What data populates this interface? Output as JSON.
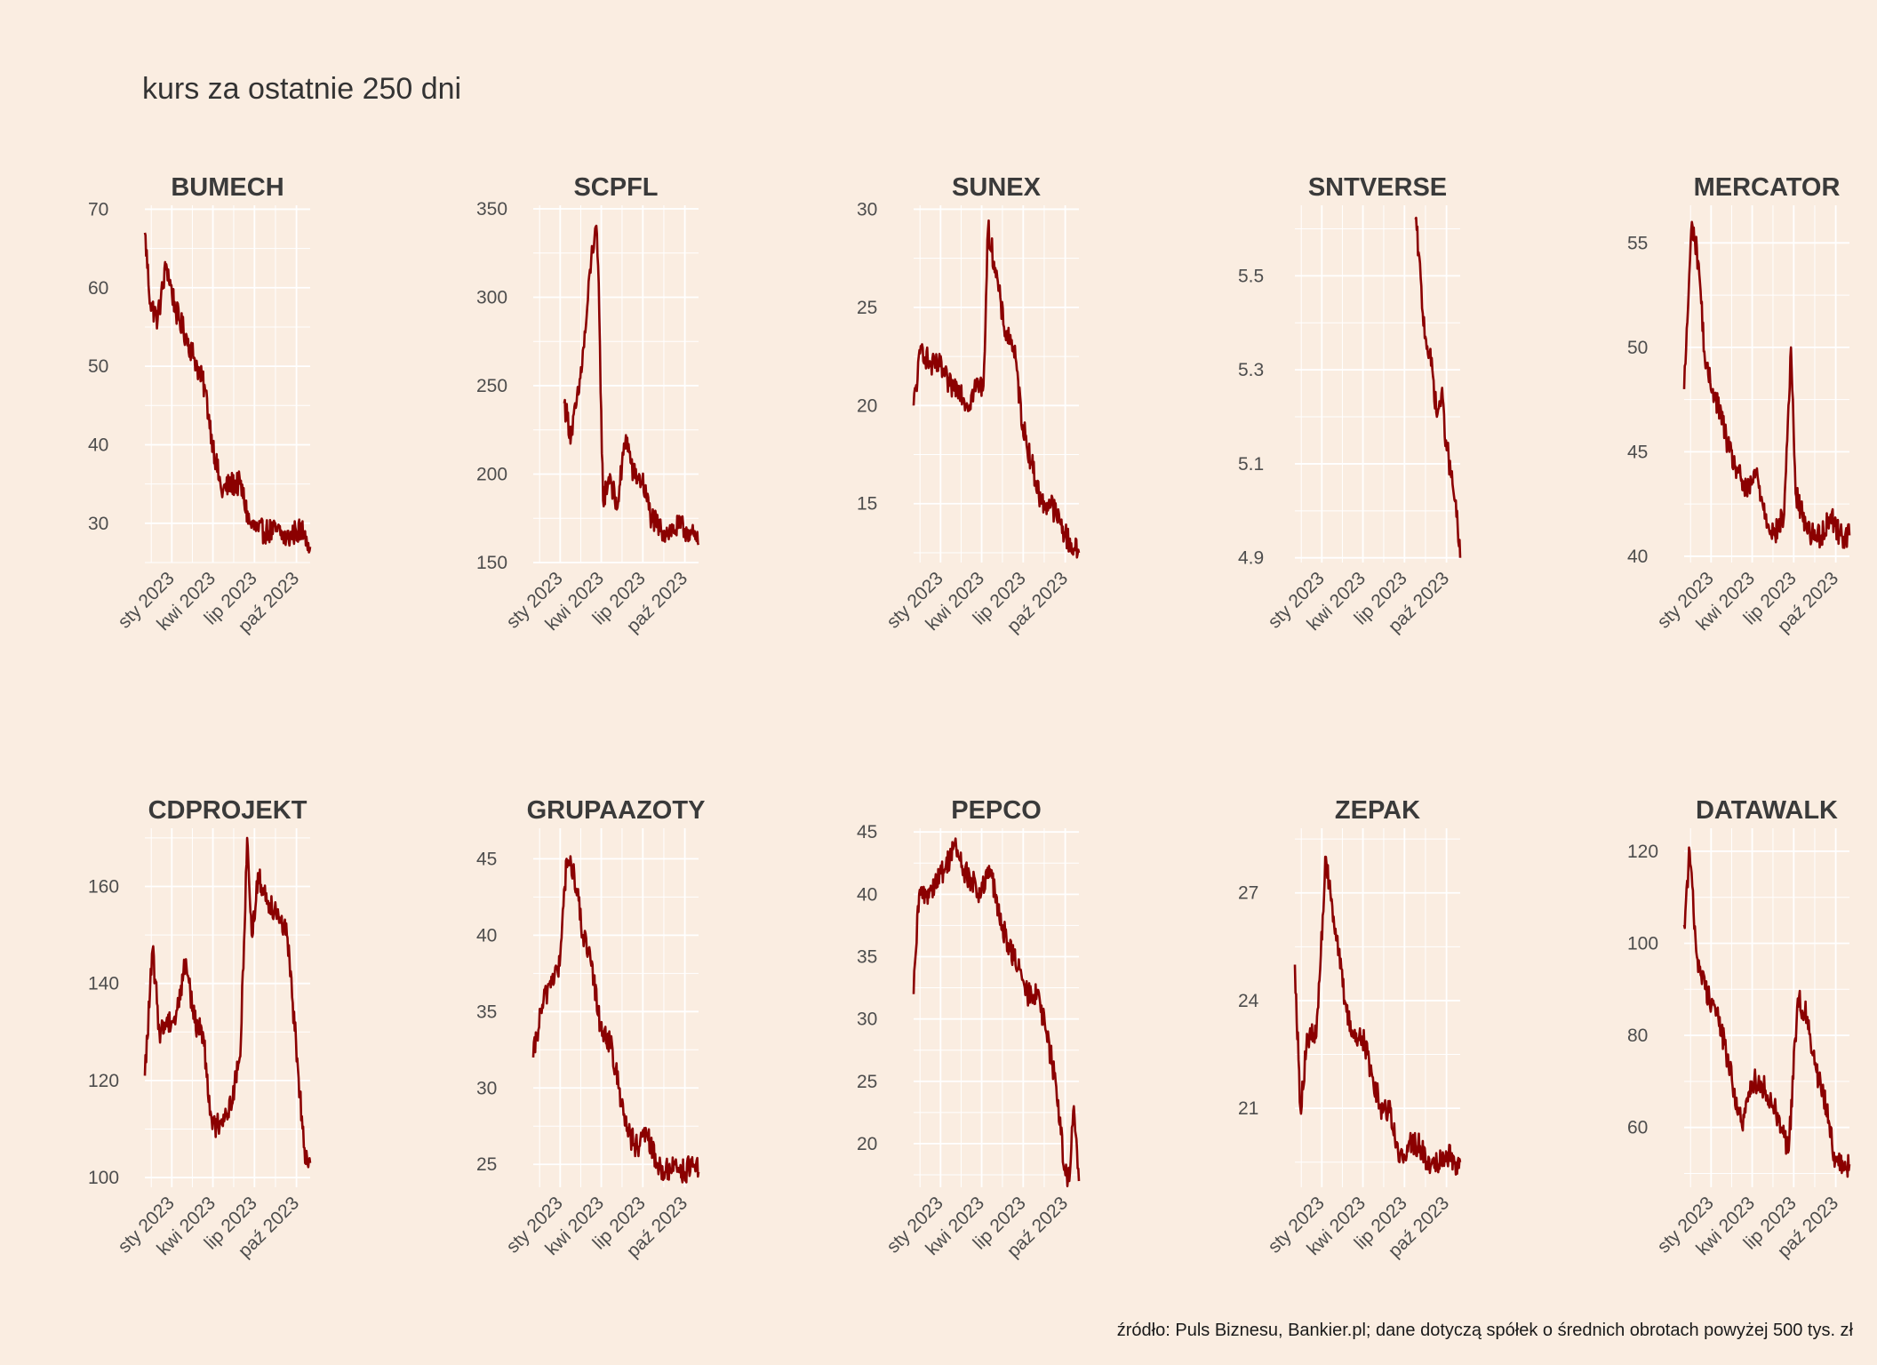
{
  "title": "kurs za ostatnie 250 dni",
  "caption": "źródło: Puls Biznesu, Bankier.pl; dane dotyczą spółek o średnich obrotach powyżej 500 tys. zł",
  "colors": {
    "background": "#FAEDE1",
    "line": "#8B0000",
    "grid": "#FFFFFF",
    "text": "#4D4D4D"
  },
  "chart_data": [
    {
      "type": "line",
      "title": "BUMECH",
      "x_ticks": [
        "sty 2023",
        "kwi 2023",
        "lip 2023",
        "paź 2023"
      ],
      "x_range": [
        "2022-11-03",
        "2023-10-31"
      ],
      "y_ticks": [
        30,
        40,
        50,
        60,
        70
      ],
      "ylim": [
        25,
        70.5
      ],
      "x": [
        "2022-11-03",
        "2022-11-15",
        "2022-12-01",
        "2022-12-20",
        "2023-01-10",
        "2023-01-31",
        "2023-02-20",
        "2023-03-15",
        "2023-04-01",
        "2023-04-20",
        "2023-05-10",
        "2023-05-31",
        "2023-06-20",
        "2023-07-10",
        "2023-07-31",
        "2023-08-20",
        "2023-09-10",
        "2023-09-30",
        "2023-10-20",
        "2023-10-31"
      ],
      "values": [
        67,
        58,
        56,
        63,
        57,
        54,
        51,
        47,
        40,
        34,
        35,
        35,
        30,
        29,
        29,
        29,
        28,
        29,
        29,
        27
      ]
    },
    {
      "type": "line",
      "title": "SCPFL",
      "x_ticks": [
        "sty 2023",
        "kwi 2023",
        "lip 2023",
        "paź 2023"
      ],
      "x_range": [
        "2022-11-03",
        "2023-10-31"
      ],
      "y_ticks": [
        150,
        200,
        250,
        300,
        350
      ],
      "ylim": [
        150,
        352
      ],
      "x": [
        "2023-01-10",
        "2023-01-25",
        "2023-02-10",
        "2023-02-25",
        "2023-03-10",
        "2023-03-20",
        "2023-03-25",
        "2023-04-05",
        "2023-04-20",
        "2023-05-05",
        "2023-05-25",
        "2023-06-10",
        "2023-06-30",
        "2023-07-20",
        "2023-08-10",
        "2023-08-31",
        "2023-09-20",
        "2023-10-10",
        "2023-10-31"
      ],
      "values": [
        240,
        222,
        245,
        280,
        322,
        340,
        318,
        185,
        200,
        180,
        222,
        200,
        196,
        175,
        168,
        168,
        170,
        168,
        160
      ]
    },
    {
      "type": "line",
      "title": "SUNEX",
      "x_ticks": [
        "sty 2023",
        "kwi 2023",
        "lip 2023",
        "paź 2023"
      ],
      "x_range": [
        "2022-11-03",
        "2023-10-31"
      ],
      "y_ticks": [
        15,
        20,
        25,
        30
      ],
      "ylim": [
        12,
        30.2
      ],
      "x": [
        "2022-11-03",
        "2022-11-20",
        "2022-12-10",
        "2022-12-31",
        "2023-01-20",
        "2023-02-10",
        "2023-03-01",
        "2023-03-20",
        "2023-04-05",
        "2023-04-15",
        "2023-05-01",
        "2023-05-20",
        "2023-06-10",
        "2023-06-30",
        "2023-07-20",
        "2023-08-10",
        "2023-08-31",
        "2023-09-20",
        "2023-10-10",
        "2023-10-31"
      ],
      "values": [
        20,
        23,
        22,
        22,
        21,
        21,
        20,
        21,
        21,
        29,
        27,
        24,
        23,
        19,
        17,
        15,
        15,
        14,
        13,
        12.5
      ]
    },
    {
      "type": "line",
      "title": "SNTVERSE",
      "x_ticks": [
        "sty 2023",
        "kwi 2023",
        "lip 2023",
        "paź 2023"
      ],
      "x_range": [
        "2022-11-03",
        "2023-10-31"
      ],
      "y_ticks": [
        4.9,
        5.1,
        5.3,
        5.5
      ],
      "ylim": [
        4.89,
        5.65
      ],
      "x": [
        "2023-07-25",
        "2023-08-01",
        "2023-08-10",
        "2023-08-20",
        "2023-08-31",
        "2023-09-10",
        "2023-09-20",
        "2023-09-30",
        "2023-10-10",
        "2023-10-20",
        "2023-10-31"
      ],
      "values": [
        5.62,
        5.55,
        5.42,
        5.35,
        5.3,
        5.2,
        5.25,
        5.15,
        5.08,
        5.02,
        4.9
      ]
    },
    {
      "type": "line",
      "title": "MERCATOR",
      "x_ticks": [
        "sty 2023",
        "kwi 2023",
        "lip 2023",
        "paź 2023"
      ],
      "x_range": [
        "2022-11-03",
        "2023-10-31"
      ],
      "y_ticks": [
        40,
        45,
        50,
        55
      ],
      "ylim": [
        39.7,
        56.8
      ],
      "x": [
        "2022-11-03",
        "2022-11-20",
        "2022-12-05",
        "2022-12-20",
        "2023-01-05",
        "2023-01-20",
        "2023-02-10",
        "2023-03-01",
        "2023-03-20",
        "2023-04-10",
        "2023-04-30",
        "2023-05-20",
        "2023-06-10",
        "2023-06-25",
        "2023-07-05",
        "2023-07-20",
        "2023-08-10",
        "2023-08-31",
        "2023-09-20",
        "2023-10-10",
        "2023-10-31"
      ],
      "values": [
        48,
        56,
        54,
        49,
        48,
        47,
        45,
        44,
        43,
        44,
        42,
        41,
        42,
        50,
        43,
        42,
        41,
        41,
        42,
        41,
        41
      ]
    },
    {
      "type": "line",
      "title": "CDPROJEKT",
      "x_ticks": [
        "sty 2023",
        "kwi 2023",
        "lip 2023",
        "paź 2023"
      ],
      "x_range": [
        "2022-11-03",
        "2023-10-31"
      ],
      "y_ticks": [
        100,
        120,
        140,
        160
      ],
      "ylim": [
        98,
        172
      ],
      "x": [
        "2022-11-03",
        "2022-11-20",
        "2022-12-05",
        "2022-12-20",
        "2023-01-10",
        "2023-02-01",
        "2023-02-20",
        "2023-03-10",
        "2023-03-31",
        "2023-04-20",
        "2023-05-10",
        "2023-05-31",
        "2023-06-15",
        "2023-06-25",
        "2023-07-10",
        "2023-07-31",
        "2023-08-20",
        "2023-09-10",
        "2023-09-30",
        "2023-10-20",
        "2023-10-31"
      ],
      "values": [
        121,
        147,
        130,
        132,
        133,
        145,
        132,
        130,
        110,
        112,
        115,
        125,
        170,
        150,
        162,
        157,
        155,
        150,
        128,
        103,
        103
      ]
    },
    {
      "type": "line",
      "title": "GRUPAAZOTY",
      "x_ticks": [
        "sty 2023",
        "kwi 2023",
        "lip 2023",
        "paź 2023"
      ],
      "x_range": [
        "2022-11-03",
        "2023-10-31"
      ],
      "y_ticks": [
        25,
        30,
        35,
        40,
        45
      ],
      "ylim": [
        23.5,
        47
      ],
      "x": [
        "2022-11-03",
        "2022-11-20",
        "2022-12-10",
        "2022-12-31",
        "2023-01-15",
        "2023-02-01",
        "2023-02-20",
        "2023-03-10",
        "2023-03-31",
        "2023-04-20",
        "2023-05-10",
        "2023-05-31",
        "2023-06-20",
        "2023-07-10",
        "2023-07-31",
        "2023-08-20",
        "2023-09-10",
        "2023-09-30",
        "2023-10-20",
        "2023-10-31"
      ],
      "values": [
        32,
        35,
        37,
        38,
        45,
        44,
        40,
        38,
        34,
        33,
        30,
        27,
        26,
        27,
        25,
        24.5,
        25,
        24.5,
        25,
        24.5
      ]
    },
    {
      "type": "line",
      "title": "PEPCO",
      "x_ticks": [
        "sty 2023",
        "kwi 2023",
        "lip 2023",
        "paź 2023"
      ],
      "x_range": [
        "2022-11-03",
        "2023-10-31"
      ],
      "y_ticks": [
        20,
        25,
        30,
        35,
        40,
        45
      ],
      "ylim": [
        16.5,
        45.3
      ],
      "x": [
        "2022-11-03",
        "2022-11-15",
        "2022-12-01",
        "2022-12-20",
        "2023-01-10",
        "2023-01-31",
        "2023-02-20",
        "2023-03-10",
        "2023-03-31",
        "2023-04-20",
        "2023-05-10",
        "2023-05-31",
        "2023-06-20",
        "2023-07-10",
        "2023-07-31",
        "2023-08-20",
        "2023-09-10",
        "2023-09-30",
        "2023-10-10",
        "2023-10-20",
        "2023-10-31"
      ],
      "values": [
        32,
        40,
        40,
        41,
        42,
        44,
        42,
        41,
        40,
        42,
        38,
        36,
        34,
        32,
        32,
        29,
        25,
        18,
        17,
        23,
        17
      ]
    },
    {
      "type": "line",
      "title": "ZEPAK",
      "x_ticks": [
        "sty 2023",
        "kwi 2023",
        "lip 2023",
        "paź 2023"
      ],
      "x_range": [
        "2022-11-03",
        "2023-10-31"
      ],
      "y_ticks": [
        21,
        24,
        27
      ],
      "ylim": [
        18.8,
        28.8
      ],
      "x": [
        "2022-11-03",
        "2022-11-15",
        "2022-12-01",
        "2022-12-20",
        "2023-01-10",
        "2023-01-31",
        "2023-02-20",
        "2023-03-10",
        "2023-03-31",
        "2023-04-20",
        "2023-05-10",
        "2023-05-31",
        "2023-06-20",
        "2023-07-10",
        "2023-07-31",
        "2023-08-20",
        "2023-09-10",
        "2023-09-30",
        "2023-10-20",
        "2023-10-31"
      ],
      "values": [
        25,
        21,
        23,
        23,
        28,
        26,
        24,
        23,
        23,
        22,
        21,
        21,
        19.5,
        20,
        20,
        19.5,
        19.5,
        19.8,
        19.5,
        19.5
      ]
    },
    {
      "type": "line",
      "title": "DATAWALK",
      "x_ticks": [
        "sty 2023",
        "kwi 2023",
        "lip 2023",
        "paź 2023"
      ],
      "x_range": [
        "2022-11-03",
        "2023-10-31"
      ],
      "y_ticks": [
        60,
        80,
        100,
        120
      ],
      "ylim": [
        47,
        125
      ],
      "x": [
        "2022-11-03",
        "2022-11-15",
        "2022-12-01",
        "2022-12-20",
        "2023-01-10",
        "2023-01-31",
        "2023-02-20",
        "2023-03-10",
        "2023-03-31",
        "2023-04-20",
        "2023-05-10",
        "2023-05-31",
        "2023-06-20",
        "2023-07-10",
        "2023-07-31",
        "2023-08-20",
        "2023-09-10",
        "2023-09-30",
        "2023-10-20",
        "2023-10-31"
      ],
      "values": [
        104,
        120,
        97,
        90,
        86,
        78,
        68,
        60,
        70,
        70,
        66,
        62,
        55,
        88,
        84,
        72,
        65,
        53,
        51,
        52
      ]
    }
  ]
}
